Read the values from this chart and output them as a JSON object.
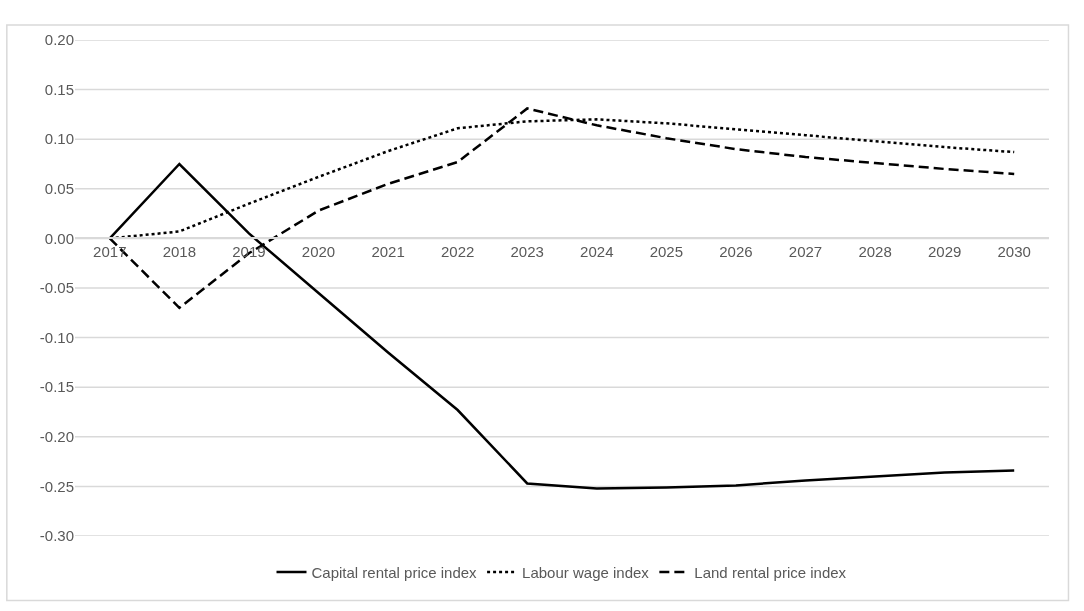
{
  "chart_data": {
    "type": "line",
    "categories": [
      "2017",
      "2018",
      "2019",
      "2020",
      "2021",
      "2022",
      "2023",
      "2024",
      "2025",
      "2026",
      "2027",
      "2028",
      "2029",
      "2030"
    ],
    "series": [
      {
        "name": "Capital rental price index",
        "color": "#000000",
        "line_style": "solid",
        "values": [
          0,
          0.075,
          0.005,
          -0.055,
          -0.115,
          -0.173,
          -0.247,
          -0.252,
          -0.251,
          -0.249,
          -0.244,
          -0.24,
          -0.236,
          -0.234
        ]
      },
      {
        "name": "Labour wage index",
        "color": "#000000",
        "line_style": "dotted",
        "values": [
          0,
          0.007,
          0.035,
          0.062,
          0.088,
          0.111,
          0.118,
          0.12,
          0.116,
          0.11,
          0.104,
          0.098,
          0.092,
          0.087
        ]
      },
      {
        "name": "Land rental price index",
        "color": "#000000",
        "line_style": "dashed",
        "values": [
          0,
          -0.07,
          -0.015,
          0.028,
          0.055,
          0.077,
          0.131,
          0.114,
          0.101,
          0.09,
          0.082,
          0.076,
          0.07,
          0.065
        ]
      }
    ],
    "ylim": [
      -0.3,
      0.2
    ],
    "yticks": [
      {
        "value": -0.3,
        "label": "-0.30"
      },
      {
        "value": -0.25,
        "label": "-0.25"
      },
      {
        "value": -0.2,
        "label": "-0.20"
      },
      {
        "value": -0.15,
        "label": "-0.15"
      },
      {
        "value": -0.1,
        "label": "-0.10"
      },
      {
        "value": -0.05,
        "label": "-0.05"
      },
      {
        "value": 0,
        "label": "0.00"
      },
      {
        "value": 0.05,
        "label": "0.05"
      },
      {
        "value": 0.1,
        "label": "0.10"
      },
      {
        "value": 0.15,
        "label": "0.15"
      },
      {
        "value": 0.2,
        "label": "0.20"
      }
    ],
    "grid": "y",
    "legend": "bottom"
  }
}
